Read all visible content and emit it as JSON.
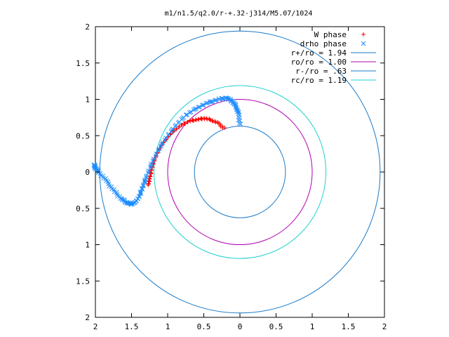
{
  "chart_data": {
    "type": "scatter",
    "title": "m1/n1.5/q2.0/r-+.32-j314/M5.07/1024",
    "xlim": [
      2,
      -2
    ],
    "ylim": [
      -2,
      2
    ],
    "x_ticks": [
      2,
      1.5,
      1,
      0.5,
      0,
      0.5,
      1,
      1.5,
      2
    ],
    "x_tick_labels": [
      "2",
      "1.5",
      "1",
      "0.5",
      "0",
      "0.5",
      "1",
      "1.5",
      "2"
    ],
    "y_ticks": [
      2,
      1.5,
      1,
      0.5,
      0,
      -0.5,
      -1,
      -1.5,
      -2
    ],
    "y_tick_labels": [
      "2",
      "1.5",
      "1",
      "0.5",
      "0",
      "0.5",
      "1",
      "1.5",
      "2"
    ],
    "grid": false,
    "legend_position": "top-right",
    "series": [
      {
        "name": "W phase",
        "kind": "points",
        "marker": "+",
        "color": "#ff0000",
        "x": [
          0.22,
          0.3,
          0.4,
          0.5,
          0.6,
          0.7,
          0.8,
          0.9,
          1.0,
          1.08,
          1.15,
          1.2,
          1.23,
          1.25,
          1.27
        ],
        "y": [
          0.6,
          0.67,
          0.72,
          0.74,
          0.72,
          0.7,
          0.65,
          0.58,
          0.48,
          0.38,
          0.25,
          0.12,
          0.0,
          -0.1,
          -0.18
        ]
      },
      {
        "name": "drho phase",
        "kind": "points",
        "marker": "x",
        "color": "#1a8cff",
        "x": [
          0.0,
          0.02,
          0.05,
          0.1,
          0.18,
          0.3,
          0.45,
          0.6,
          0.75,
          0.88,
          1.0,
          1.12,
          1.22,
          1.3,
          1.35,
          1.4,
          1.45,
          1.5,
          1.57,
          1.65,
          1.75,
          1.85,
          1.95,
          2.0,
          2.02
        ],
        "y": [
          0.65,
          0.8,
          0.9,
          0.97,
          1.02,
          1.0,
          0.95,
          0.88,
          0.78,
          0.65,
          0.5,
          0.32,
          0.12,
          -0.08,
          -0.22,
          -0.35,
          -0.42,
          -0.44,
          -0.42,
          -0.36,
          -0.25,
          -0.12,
          0.0,
          0.06,
          0.1
        ]
      },
      {
        "name": "r+/ro = 1.94",
        "kind": "circle",
        "radius": 1.94,
        "color": "#1a7ac7"
      },
      {
        "name": "ro/ro = 1.00",
        "kind": "circle",
        "radius": 1.0,
        "color": "#b000b0"
      },
      {
        "name": "r-/ro = .63",
        "kind": "circle",
        "radius": 0.63,
        "color": "#1a7ac7"
      },
      {
        "name": "rc/ro = 1.19",
        "kind": "circle",
        "radius": 1.19,
        "color": "#20d0d0"
      }
    ]
  }
}
